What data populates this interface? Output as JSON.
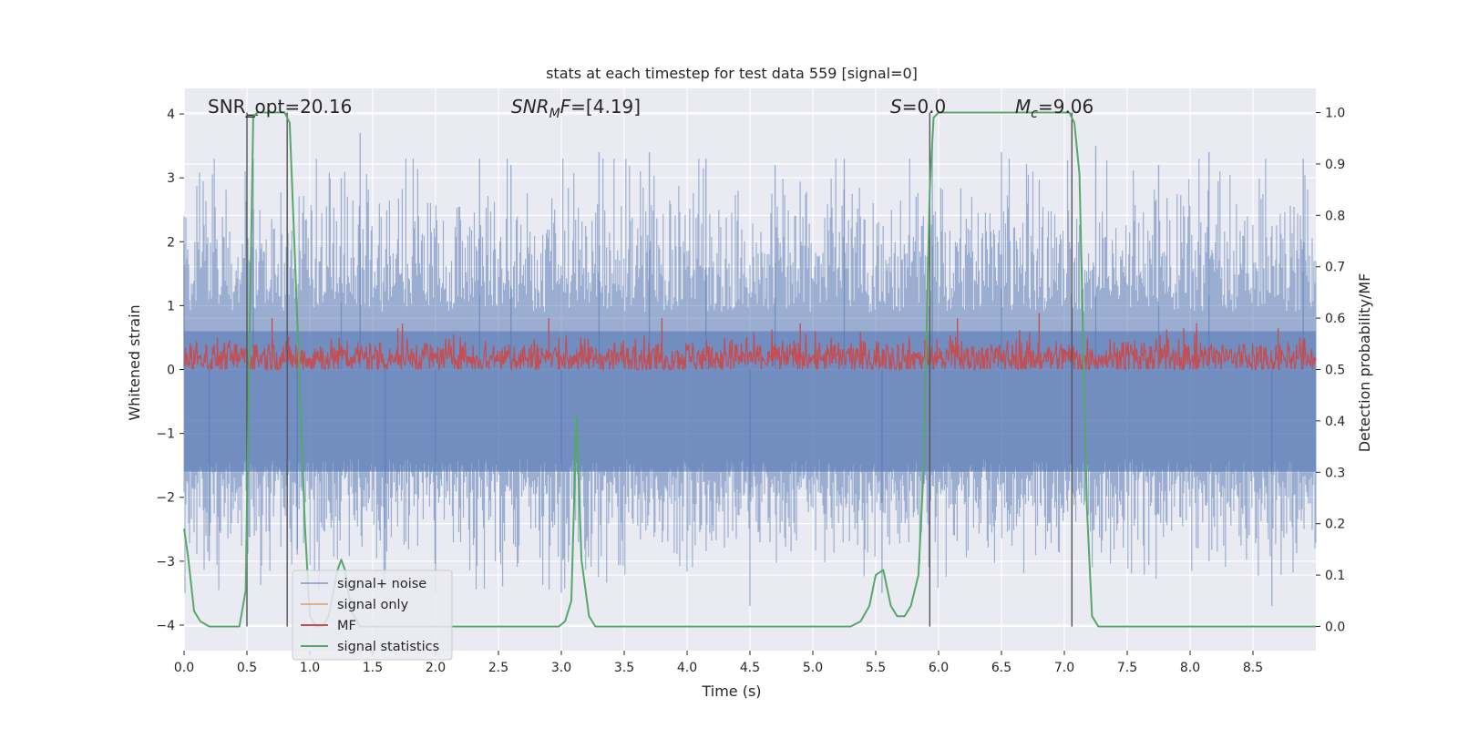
{
  "chart_data": {
    "type": "line",
    "title": "stats at each timestep for test data 559 [signal=0]",
    "xlabel": "Time (s)",
    "ylabel_left": "Whitened strain",
    "ylabel_right": "Detection probability/MF",
    "xlim": [
      0.0,
      9.0
    ],
    "ylim_left": [
      -4.4,
      4.4
    ],
    "ylim_right": [
      -0.047,
      1.047
    ],
    "x_ticks": [
      "0.0",
      "0.5",
      "1.0",
      "1.5",
      "2.0",
      "2.5",
      "3.0",
      "3.5",
      "4.0",
      "4.5",
      "5.0",
      "5.5",
      "6.0",
      "6.5",
      "7.0",
      "7.5",
      "8.0",
      "8.5"
    ],
    "y_ticks_left": [
      "4",
      "3",
      "2",
      "1",
      "0",
      "−1",
      "−2",
      "−3",
      "−4"
    ],
    "y_ticks_right": [
      "1.0",
      "0.9",
      "0.8",
      "0.7",
      "0.6",
      "0.5",
      "0.4",
      "0.3",
      "0.2",
      "0.1",
      "0.0"
    ],
    "grid": true,
    "annotations": [
      {
        "id": "snr-opt",
        "text": "SNR_opt=20.16",
        "x": 0.2
      },
      {
        "id": "snr-mf",
        "text": "=[4.19]",
        "prefix": "SNR",
        "sub": "M",
        "mid": "F",
        "x": 2.6
      },
      {
        "id": "s",
        "text": "=0.0",
        "prefix": "S",
        "x": 5.6
      },
      {
        "id": "mc",
        "text": "=9.06",
        "prefix": "M",
        "sub": "c",
        "x": 6.6
      }
    ],
    "series": [
      {
        "name": "signal+ noise",
        "color": "#4c72b0",
        "axis": "left",
        "style": "noise band",
        "amplitude_range": [
          -3.8,
          3.8
        ],
        "points": [
          [
            0.0,
            2.4
          ],
          [
            0.2,
            -3.0
          ],
          [
            0.55,
            3.3
          ],
          [
            0.9,
            -2.9
          ],
          [
            1.25,
            3.0
          ],
          [
            1.4,
            3.7
          ],
          [
            1.6,
            -3.2
          ],
          [
            2.0,
            -3.5
          ],
          [
            2.35,
            3.3
          ],
          [
            2.6,
            3.2
          ],
          [
            3.0,
            -3.5
          ],
          [
            3.3,
            3.4
          ],
          [
            3.7,
            3.4
          ],
          [
            4.15,
            3.3
          ],
          [
            4.5,
            -3.7
          ],
          [
            4.7,
            3.2
          ],
          [
            5.25,
            3.3
          ],
          [
            5.55,
            -3.5
          ],
          [
            5.95,
            3.5
          ],
          [
            6.5,
            3.4
          ],
          [
            7.25,
            3.5
          ],
          [
            7.75,
            3.2
          ],
          [
            8.15,
            3.4
          ],
          [
            8.65,
            -3.7
          ],
          [
            8.9,
            3.3
          ]
        ]
      },
      {
        "name": "signal only",
        "color": "#dd8452",
        "axis": "left",
        "values": []
      },
      {
        "name": "MF",
        "color": "#c44e52",
        "axis": "right",
        "baseline": 0.5,
        "range": [
          0.5,
          0.62
        ],
        "peaks": [
          [
            0.7,
            0.6
          ],
          [
            1.7,
            0.58
          ],
          [
            2.9,
            0.6
          ],
          [
            3.8,
            0.6
          ],
          [
            4.9,
            0.59
          ],
          [
            6.15,
            0.6
          ],
          [
            6.8,
            0.61
          ],
          [
            7.95,
            0.58
          ],
          [
            8.7,
            0.58
          ]
        ]
      },
      {
        "name": "signal statistics",
        "color": "#55a868",
        "axis": "right",
        "x": [
          0.0,
          0.03,
          0.08,
          0.13,
          0.2,
          0.3,
          0.44,
          0.49,
          0.52,
          0.55,
          0.58,
          0.62,
          0.68,
          0.74,
          0.8,
          0.84,
          0.9,
          0.96,
          1.0,
          1.05,
          1.1,
          1.15,
          1.22,
          1.25,
          1.28,
          1.33,
          1.4,
          1.5,
          2.0,
          2.5,
          2.98,
          3.03,
          3.08,
          3.12,
          3.16,
          3.22,
          3.27,
          3.33,
          3.5,
          4.0,
          4.5,
          5.0,
          5.3,
          5.38,
          5.45,
          5.5,
          5.56,
          5.62,
          5.67,
          5.73,
          5.78,
          5.84,
          5.88,
          5.93,
          5.96,
          6.0,
          6.05,
          6.5,
          7.0,
          7.04,
          7.08,
          7.12,
          7.18,
          7.22,
          7.27,
          7.33,
          7.5,
          8.0,
          8.5,
          9.0
        ],
        "y": [
          0.19,
          0.14,
          0.03,
          0.01,
          0.0,
          0.0,
          0.0,
          0.07,
          0.55,
          0.99,
          1.0,
          1.0,
          1.0,
          1.0,
          1.0,
          0.98,
          0.6,
          0.2,
          0.02,
          0.0,
          0.0,
          0.02,
          0.11,
          0.13,
          0.11,
          0.03,
          0.0,
          0.0,
          0.0,
          0.0,
          0.0,
          0.01,
          0.05,
          0.41,
          0.13,
          0.02,
          0.0,
          0.0,
          0.0,
          0.0,
          0.0,
          0.0,
          0.0,
          0.01,
          0.04,
          0.1,
          0.11,
          0.04,
          0.02,
          0.02,
          0.04,
          0.1,
          0.3,
          0.85,
          0.99,
          1.0,
          1.0,
          1.0,
          1.0,
          1.0,
          0.98,
          0.88,
          0.23,
          0.02,
          0.0,
          0.0,
          0.0,
          0.0,
          0.0,
          0.0
        ]
      }
    ],
    "vertical_markers": [
      0.5,
      0.82,
      5.93,
      7.06
    ],
    "legend": {
      "placement": "lower-left",
      "entries": [
        "signal+ noise",
        "signal only",
        "MF",
        "signal statistics"
      ]
    }
  }
}
